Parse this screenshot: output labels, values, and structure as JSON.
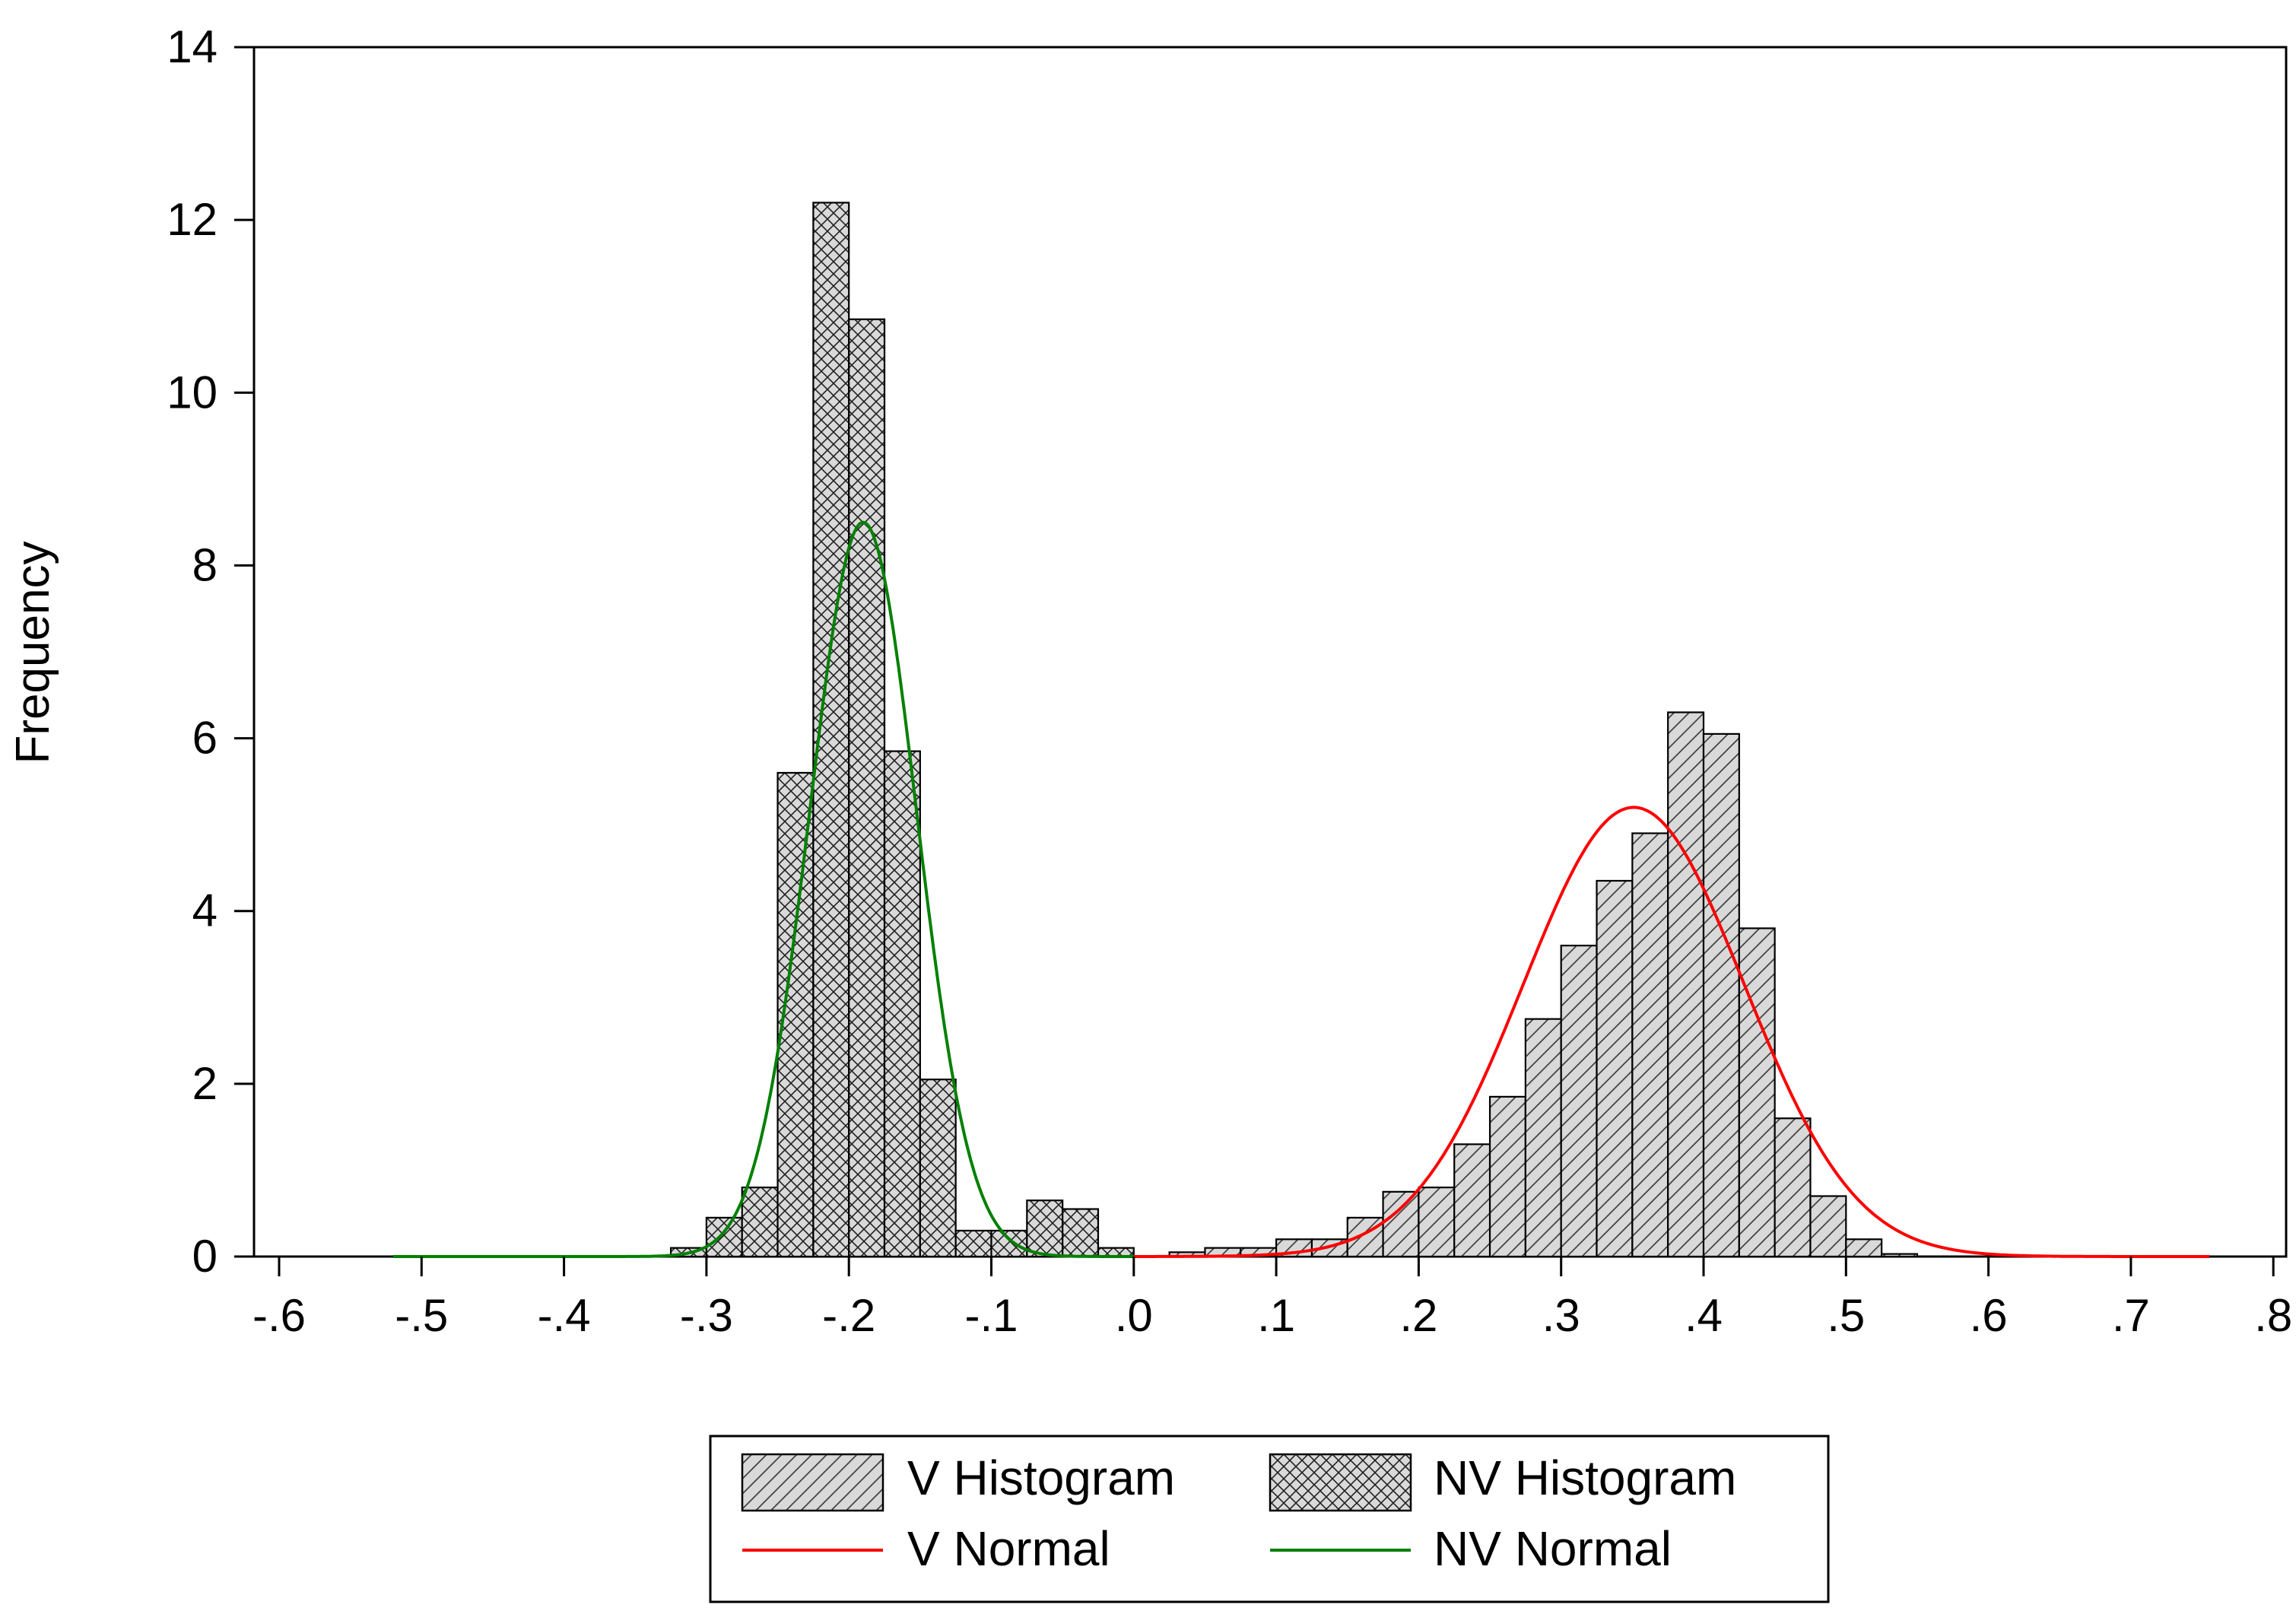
{
  "chart_data": {
    "type": "bar",
    "title": "",
    "xlabel": "",
    "ylabel": "Frequency",
    "xlim": [
      -0.62,
      0.82
    ],
    "ylim": [
      0,
      14
    ],
    "x_ticks": [
      {
        "value": -0.6,
        "label": "-.6"
      },
      {
        "value": -0.5,
        "label": "-.5"
      },
      {
        "value": -0.4,
        "label": "-.4"
      },
      {
        "value": -0.3,
        "label": "-.3"
      },
      {
        "value": -0.2,
        "label": "-.2"
      },
      {
        "value": -0.1,
        "label": "-.1"
      },
      {
        "value": 0.0,
        "label": ".0"
      },
      {
        "value": 0.1,
        "label": ".1"
      },
      {
        "value": 0.2,
        "label": ".2"
      },
      {
        "value": 0.3,
        "label": ".3"
      },
      {
        "value": 0.4,
        "label": ".4"
      },
      {
        "value": 0.5,
        "label": ".5"
      },
      {
        "value": 0.6,
        "label": ".6"
      },
      {
        "value": 0.7,
        "label": ".7"
      },
      {
        "value": 0.8,
        "label": ".8"
      }
    ],
    "y_ticks": [
      {
        "value": 0,
        "label": "0"
      },
      {
        "value": 2,
        "label": "2"
      },
      {
        "value": 4,
        "label": "4"
      },
      {
        "value": 6,
        "label": "6"
      },
      {
        "value": 8,
        "label": "8"
      },
      {
        "value": 10,
        "label": "10"
      },
      {
        "value": 12,
        "label": "12"
      },
      {
        "value": 14,
        "label": "14"
      }
    ],
    "bin_width": 0.025,
    "series": [
      {
        "name": "V Histogram",
        "kind": "histogram",
        "pattern": "diagonal-hatch",
        "fill": "#d9d9d9",
        "bin_starts": [
          0.025,
          0.05,
          0.075,
          0.1,
          0.125,
          0.15,
          0.175,
          0.2,
          0.225,
          0.25,
          0.275,
          0.3,
          0.325,
          0.35,
          0.375,
          0.4,
          0.425,
          0.45,
          0.475,
          0.5,
          0.525
        ],
        "values": [
          0.05,
          0.1,
          0.1,
          0.2,
          0.2,
          0.45,
          0.75,
          0.8,
          1.3,
          1.85,
          2.75,
          3.6,
          4.35,
          4.9,
          6.3,
          6.05,
          3.8,
          1.6,
          0.7,
          0.2,
          0.03
        ]
      },
      {
        "name": "NV Histogram",
        "kind": "histogram",
        "pattern": "cross-hatch",
        "fill": "#d9d9d9",
        "bin_starts": [
          -0.325,
          -0.3,
          -0.275,
          -0.25,
          -0.225,
          -0.2,
          -0.175,
          -0.15,
          -0.125,
          -0.1,
          -0.075,
          -0.05,
          -0.025
        ],
        "values": [
          0.1,
          0.45,
          0.8,
          5.6,
          12.2,
          10.85,
          5.85,
          2.05,
          0.3,
          0.3,
          0.65,
          0.55,
          0.1
        ]
      },
      {
        "name": "V Normal",
        "kind": "normal-curve",
        "color": "#ff0000",
        "mean": 0.351,
        "peak": 5.2,
        "sd": 0.0775,
        "x_range": [
          0.0,
          0.755
        ]
      },
      {
        "name": "NV Normal",
        "kind": "normal-curve",
        "color": "#008000",
        "mean": -0.19,
        "peak": 8.5,
        "sd": 0.0375,
        "x_range": [
          -0.52,
          0.0
        ]
      }
    ],
    "legend": {
      "position": "bottom-center",
      "items": [
        {
          "label": "V Histogram",
          "swatch": "diagonal-hatch"
        },
        {
          "label": "NV Histogram",
          "swatch": "cross-hatch"
        },
        {
          "label": "V Normal",
          "swatch": "line",
          "color": "#ff0000"
        },
        {
          "label": "NV Normal",
          "swatch": "line",
          "color": "#008000"
        }
      ]
    },
    "grid": false
  }
}
